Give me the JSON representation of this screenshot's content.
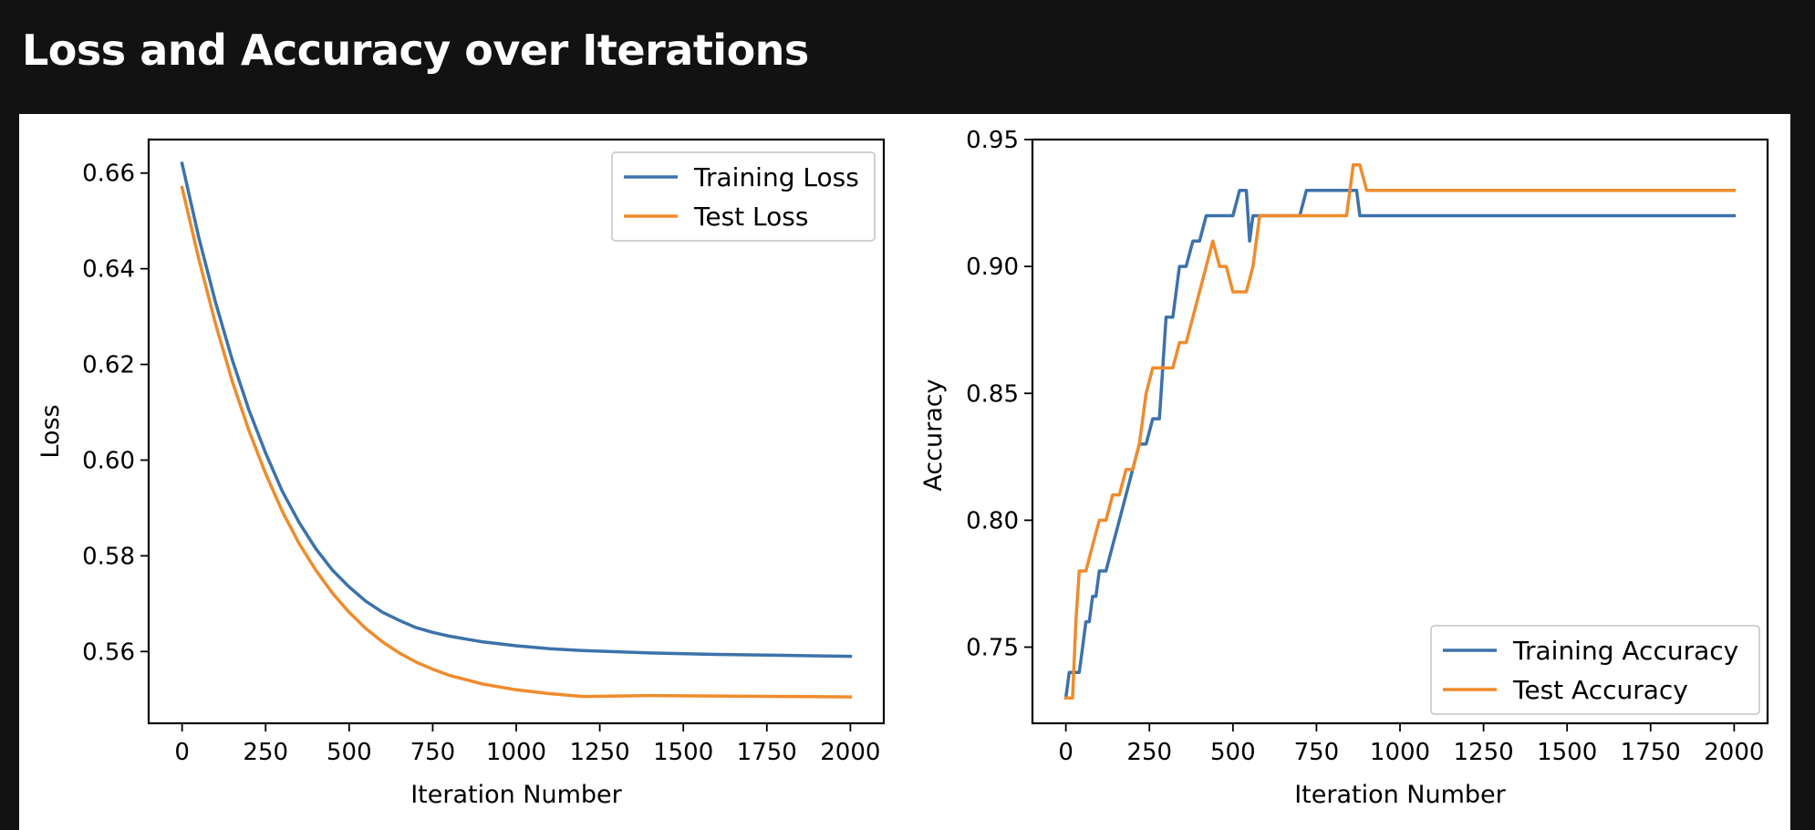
{
  "page": {
    "title": "Loss and Accuracy over Iterations"
  },
  "colors": {
    "training": "#3d72aa",
    "test": "#ef8b2c",
    "background": "#121212"
  },
  "chart_data": [
    {
      "type": "line",
      "xlabel": "Iteration Number",
      "ylabel": "Loss",
      "xlim": [
        -100,
        2100
      ],
      "ylim": [
        0.545,
        0.667
      ],
      "xticks": [
        0,
        250,
        500,
        750,
        1000,
        1250,
        1500,
        1750,
        2000
      ],
      "yticks": [
        0.56,
        0.58,
        0.6,
        0.62,
        0.64,
        0.66
      ],
      "ytick_decimals": 2,
      "grid": false,
      "legend_position": "upper right",
      "series": [
        {
          "name": "Training Loss",
          "color": "#3d72aa",
          "x": [
            0,
            50,
            100,
            150,
            200,
            250,
            300,
            350,
            400,
            450,
            500,
            550,
            600,
            650,
            700,
            750,
            800,
            900,
            1000,
            1100,
            1200,
            1400,
            1600,
            1800,
            2000
          ],
          "values": [
            0.662,
            0.6465,
            0.633,
            0.621,
            0.6105,
            0.6015,
            0.5935,
            0.587,
            0.5815,
            0.577,
            0.5735,
            0.5705,
            0.5682,
            0.5665,
            0.565,
            0.564,
            0.5632,
            0.562,
            0.5612,
            0.5606,
            0.5602,
            0.5597,
            0.5594,
            0.5592,
            0.559
          ]
        },
        {
          "name": "Test Loss",
          "color": "#ef8b2c",
          "x": [
            0,
            50,
            100,
            150,
            200,
            250,
            300,
            350,
            400,
            450,
            500,
            550,
            600,
            650,
            700,
            750,
            800,
            900,
            1000,
            1100,
            1200,
            1400,
            1600,
            1800,
            2000
          ],
          "values": [
            0.657,
            0.642,
            0.6285,
            0.6165,
            0.6062,
            0.5972,
            0.5893,
            0.5826,
            0.577,
            0.5722,
            0.5682,
            0.5648,
            0.562,
            0.5597,
            0.5578,
            0.5563,
            0.555,
            0.5532,
            0.552,
            0.5512,
            0.5506,
            0.5508,
            0.5507,
            0.5506,
            0.5505
          ]
        }
      ]
    },
    {
      "type": "line",
      "xlabel": "Iteration Number",
      "ylabel": "Accuracy",
      "xlim": [
        -100,
        2100
      ],
      "ylim": [
        0.72,
        0.95
      ],
      "xticks": [
        0,
        250,
        500,
        750,
        1000,
        1250,
        1500,
        1750,
        2000
      ],
      "yticks": [
        0.75,
        0.8,
        0.85,
        0.9,
        0.95
      ],
      "ytick_decimals": 2,
      "grid": false,
      "legend_position": "lower right",
      "series": [
        {
          "name": "Training Accuracy",
          "color": "#3d72aa",
          "x": [
            0,
            10,
            20,
            40,
            50,
            60,
            70,
            80,
            90,
            100,
            120,
            140,
            160,
            180,
            200,
            220,
            240,
            260,
            280,
            300,
            320,
            340,
            360,
            380,
            400,
            420,
            440,
            460,
            480,
            500,
            520,
            540,
            550,
            560,
            580,
            600,
            640,
            680,
            700,
            720,
            750,
            800,
            860,
            870,
            880,
            900,
            1000,
            2000
          ],
          "values": [
            0.73,
            0.74,
            0.74,
            0.74,
            0.75,
            0.76,
            0.76,
            0.77,
            0.77,
            0.78,
            0.78,
            0.79,
            0.8,
            0.81,
            0.82,
            0.83,
            0.83,
            0.84,
            0.84,
            0.88,
            0.88,
            0.9,
            0.9,
            0.91,
            0.91,
            0.92,
            0.92,
            0.92,
            0.92,
            0.92,
            0.93,
            0.93,
            0.91,
            0.92,
            0.92,
            0.92,
            0.92,
            0.92,
            0.92,
            0.93,
            0.93,
            0.93,
            0.93,
            0.93,
            0.92,
            0.92,
            0.92,
            0.92
          ]
        },
        {
          "name": "Test Accuracy",
          "color": "#ef8b2c",
          "x": [
            0,
            20,
            30,
            40,
            50,
            60,
            80,
            100,
            120,
            140,
            160,
            180,
            200,
            220,
            240,
            260,
            280,
            300,
            320,
            340,
            360,
            380,
            400,
            420,
            440,
            460,
            480,
            500,
            520,
            540,
            560,
            580,
            600,
            650,
            700,
            750,
            800,
            820,
            840,
            860,
            880,
            900,
            950,
            1000,
            2000
          ],
          "values": [
            0.73,
            0.73,
            0.76,
            0.78,
            0.78,
            0.78,
            0.79,
            0.8,
            0.8,
            0.81,
            0.81,
            0.82,
            0.82,
            0.83,
            0.85,
            0.86,
            0.86,
            0.86,
            0.86,
            0.87,
            0.87,
            0.88,
            0.89,
            0.9,
            0.91,
            0.9,
            0.9,
            0.89,
            0.89,
            0.89,
            0.9,
            0.92,
            0.92,
            0.92,
            0.92,
            0.92,
            0.92,
            0.92,
            0.92,
            0.94,
            0.94,
            0.93,
            0.93,
            0.93,
            0.93
          ]
        }
      ]
    }
  ]
}
